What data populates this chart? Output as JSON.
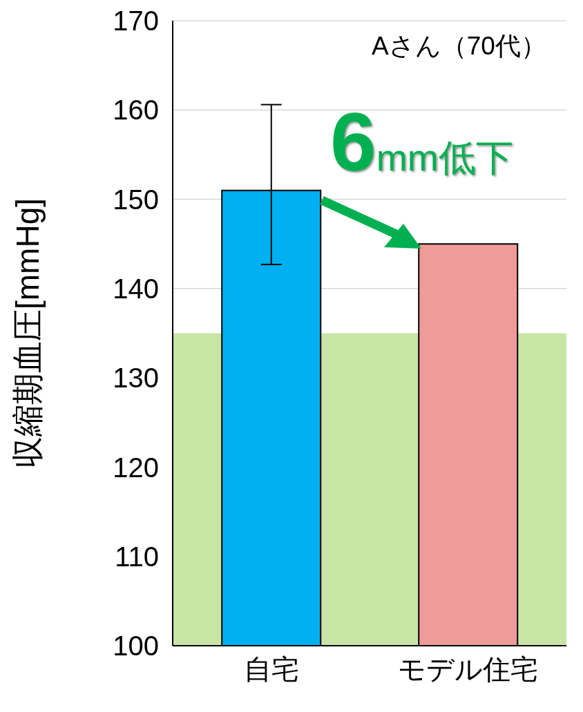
{
  "chart_data": {
    "type": "bar",
    "ylabel": "収縮期血圧[mmHg]",
    "categories": [
      "自宅",
      "モデル住宅"
    ],
    "values": [
      151,
      145
    ],
    "colors": [
      "#00b0f0",
      "#f09a9a"
    ],
    "errors": [
      [
        142.7,
        160.6
      ],
      null
    ],
    "ylim": [
      100,
      170
    ],
    "yticks": [
      100,
      110,
      120,
      130,
      140,
      150,
      160,
      170
    ],
    "grid": "y",
    "bands": [
      {
        "axis": "y",
        "from": 100,
        "to": 135,
        "color": "#c9e5a6"
      }
    ],
    "annotations": [
      "Aさん（70代）",
      "6mm低下"
    ]
  }
}
